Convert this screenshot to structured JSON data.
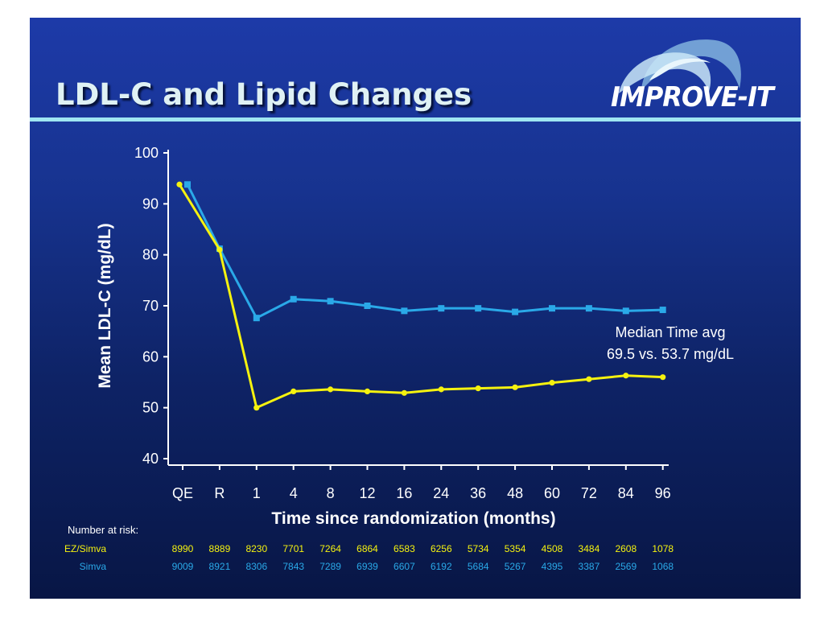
{
  "slide": {
    "title": "LDL-C and Lipid Changes",
    "logo_text": "IMPROVE-IT"
  },
  "chart_data": {
    "type": "line",
    "title": "",
    "xlabel": "Time since randomization (months)",
    "ylabel": "Mean LDL-C (mg/dL)",
    "ylim": [
      40,
      100
    ],
    "yticks": [
      40,
      50,
      60,
      70,
      80,
      90,
      100
    ],
    "categories": [
      "QE",
      "R",
      "1",
      "4",
      "8",
      "12",
      "16",
      "24",
      "36",
      "48",
      "60",
      "72",
      "84",
      "96"
    ],
    "grid": false,
    "legend": "none",
    "series": [
      {
        "name": "EZ/Simva",
        "color": "#f5f20f",
        "marker": "circle",
        "values": [
          93.8,
          81,
          50,
          53.2,
          53.6,
          53.2,
          52.9,
          53.6,
          53.8,
          54,
          54.9,
          55.6,
          56.3,
          56
        ]
      },
      {
        "name": "Simva",
        "color": "#2aa9e8",
        "marker": "square",
        "values": [
          93.8,
          81.2,
          67.6,
          71.3,
          70.9,
          70,
          69,
          69.5,
          69.5,
          68.8,
          69.5,
          69.5,
          69,
          69.2
        ]
      }
    ],
    "annotation": [
      "Median Time avg",
      "69.5 vs. 53.7 mg/dL"
    ]
  },
  "risk_table": {
    "header": "Number at risk:",
    "rows": [
      {
        "label": "EZ/Simva",
        "color": "#f5f20f",
        "values": [
          "8990",
          "8889",
          "8230",
          "7701",
          "7264",
          "6864",
          "6583",
          "6256",
          "5734",
          "5354",
          "4508",
          "3484",
          "2608",
          "1078"
        ]
      },
      {
        "label": "Simva",
        "color": "#2aa9e8",
        "values": [
          "9009",
          "8921",
          "8306",
          "7843",
          "7289",
          "6939",
          "6607",
          "6192",
          "5684",
          "5267",
          "4395",
          "3387",
          "2569",
          "1068"
        ]
      }
    ]
  }
}
